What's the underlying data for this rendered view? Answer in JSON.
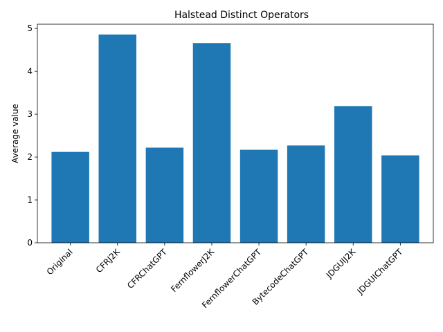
{
  "chart_data": {
    "type": "bar",
    "title": "Halstead Distinct Operators",
    "xlabel": "",
    "ylabel": "Average value",
    "categories": [
      "Original",
      "CFRJ2K",
      "CFRChatGPT",
      "FernflowerJ2K",
      "FernflowerChatGPT",
      "BytecodeChatGPT",
      "JDGUIJ2K",
      "JDGUIChatGPT"
    ],
    "values": [
      2.12,
      4.86,
      2.22,
      4.66,
      2.17,
      2.27,
      3.19,
      2.04
    ],
    "ylim": [
      0,
      5.1
    ],
    "yticks": [
      0,
      1,
      2,
      3,
      4,
      5
    ],
    "grid": false,
    "bar_color": "#1f77b4"
  }
}
